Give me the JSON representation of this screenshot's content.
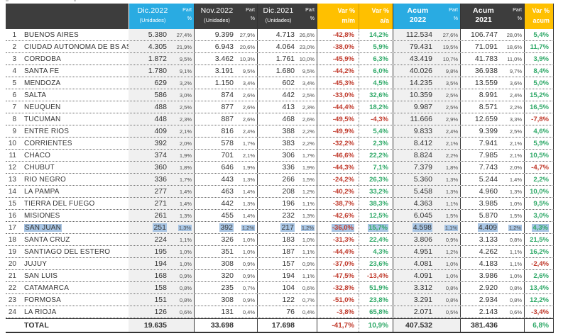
{
  "colors": {
    "header_dark": "#3D3D3D",
    "accent_cyan": "#29ABE2",
    "accent_yellow": "#FFC000",
    "positive_green": "#2FA968",
    "negative_red": "#C0392B",
    "highlight_blue": "#A8C5E4",
    "column_shade_gray": "#F0F0F0"
  },
  "header": {
    "part": {
      "line1": "Part",
      "line2": "%"
    },
    "dic2022": {
      "title": "Dic.2022",
      "sub": "(Unidades)"
    },
    "nov2022": {
      "title": "Nov.2022",
      "sub": "(Unidades)"
    },
    "dic2021": {
      "title": "Dic.2021",
      "sub": "(Unidades)"
    },
    "var_mm": {
      "line1": "Var %",
      "line2": "m/m"
    },
    "var_aa": {
      "line1": "Var %",
      "line2": "a/a"
    },
    "acum2022": {
      "line1": "Acum",
      "line2": "2022"
    },
    "acum2021": {
      "line1": "Acum",
      "line2": "2021"
    },
    "var_acum": {
      "line1": "Var %",
      "line2": "acum"
    }
  },
  "table": {
    "rows": [
      {
        "num": "1",
        "name": "BUENOS AIRES",
        "d22": "5.380",
        "d22p": "27,4%",
        "n22": "9.399",
        "n22p": "27,9%",
        "d21": "4.713",
        "d21p": "26,6%",
        "vmm": "-42,8%",
        "vaa": "14,2%",
        "a22": "112.534",
        "a22p": "27,6%",
        "a21": "106.747",
        "a21p": "28,0%",
        "vac": "5,4%"
      },
      {
        "num": "2",
        "name": "CIUDAD AUTONOMA DE BS AS",
        "d22": "4.305",
        "d22p": "21,9%",
        "n22": "6.943",
        "n22p": "20,6%",
        "d21": "4.064",
        "d21p": "23,0%",
        "vmm": "-38,0%",
        "vaa": "5,9%",
        "a22": "79.431",
        "a22p": "19,5%",
        "a21": "71.091",
        "a21p": "18,6%",
        "vac": "11,7%"
      },
      {
        "num": "3",
        "name": "CORDOBA",
        "d22": "1.872",
        "d22p": "9,5%",
        "n22": "3.462",
        "n22p": "10,3%",
        "d21": "1.761",
        "d21p": "10,0%",
        "vmm": "-45,9%",
        "vaa": "6,3%",
        "a22": "43.419",
        "a22p": "10,7%",
        "a21": "41.783",
        "a21p": "11,0%",
        "vac": "3,9%"
      },
      {
        "num": "4",
        "name": "SANTA FE",
        "d22": "1.780",
        "d22p": "9,1%",
        "n22": "3.191",
        "n22p": "9,5%",
        "d21": "1.680",
        "d21p": "9,5%",
        "vmm": "-44,2%",
        "vaa": "6,0%",
        "a22": "40.026",
        "a22p": "9,8%",
        "a21": "36.938",
        "a21p": "9,7%",
        "vac": "8,4%"
      },
      {
        "num": "5",
        "name": "MENDOZA",
        "d22": "629",
        "d22p": "3,2%",
        "n22": "1.150",
        "n22p": "3,4%",
        "d21": "602",
        "d21p": "3,4%",
        "vmm": "-45,3%",
        "vaa": "4,5%",
        "a22": "14.235",
        "a22p": "3,5%",
        "a21": "13.559",
        "a21p": "3,6%",
        "vac": "5,0%"
      },
      {
        "num": "6",
        "name": "SALTA",
        "d22": "586",
        "d22p": "3,0%",
        "n22": "874",
        "n22p": "2,6%",
        "d21": "442",
        "d21p": "2,5%",
        "vmm": "-33,0%",
        "vaa": "32,6%",
        "a22": "10.359",
        "a22p": "2,5%",
        "a21": "8.991",
        "a21p": "2,4%",
        "vac": "15,2%"
      },
      {
        "num": "7",
        "name": "NEUQUEN",
        "d22": "488",
        "d22p": "2,5%",
        "n22": "877",
        "n22p": "2,6%",
        "d21": "413",
        "d21p": "2,3%",
        "vmm": "-44,4%",
        "vaa": "18,2%",
        "a22": "9.987",
        "a22p": "2,5%",
        "a21": "8.571",
        "a21p": "2,2%",
        "vac": "16,5%"
      },
      {
        "num": "8",
        "name": "TUCUMAN",
        "d22": "448",
        "d22p": "2,3%",
        "n22": "887",
        "n22p": "2,6%",
        "d21": "468",
        "d21p": "2,6%",
        "vmm": "-49,5%",
        "vaa": "-4,3%",
        "a22": "11.666",
        "a22p": "2,9%",
        "a21": "12.659",
        "a21p": "3,3%",
        "vac": "-7,8%"
      },
      {
        "num": "9",
        "name": "ENTRE RIOS",
        "d22": "409",
        "d22p": "2,1%",
        "n22": "816",
        "n22p": "2,4%",
        "d21": "388",
        "d21p": "2,2%",
        "vmm": "-49,9%",
        "vaa": "5,4%",
        "a22": "9.833",
        "a22p": "2,4%",
        "a21": "9.399",
        "a21p": "2,5%",
        "vac": "4,6%"
      },
      {
        "num": "10",
        "name": "CORRIENTES",
        "d22": "392",
        "d22p": "2,0%",
        "n22": "578",
        "n22p": "1,7%",
        "d21": "383",
        "d21p": "2,2%",
        "vmm": "-32,2%",
        "vaa": "2,3%",
        "a22": "8.412",
        "a22p": "2,1%",
        "a21": "7.941",
        "a21p": "2,1%",
        "vac": "5,9%"
      },
      {
        "num": "11",
        "name": "CHACO",
        "d22": "374",
        "d22p": "1,9%",
        "n22": "701",
        "n22p": "2,1%",
        "d21": "306",
        "d21p": "1,7%",
        "vmm": "-46,6%",
        "vaa": "22,2%",
        "a22": "8.824",
        "a22p": "2,2%",
        "a21": "7.985",
        "a21p": "2,1%",
        "vac": "10,5%"
      },
      {
        "num": "12",
        "name": "CHUBUT",
        "d22": "360",
        "d22p": "1,8%",
        "n22": "646",
        "n22p": "1,9%",
        "d21": "336",
        "d21p": "1,9%",
        "vmm": "-44,3%",
        "vaa": "7,1%",
        "a22": "7.379",
        "a22p": "1,8%",
        "a21": "7.743",
        "a21p": "2,0%",
        "vac": "-4,7%"
      },
      {
        "num": "13",
        "name": "RIO NEGRO",
        "d22": "336",
        "d22p": "1,7%",
        "n22": "443",
        "n22p": "1,3%",
        "d21": "266",
        "d21p": "1,5%",
        "vmm": "-24,2%",
        "vaa": "26,3%",
        "a22": "5.360",
        "a22p": "1,3%",
        "a21": "5.244",
        "a21p": "1,4%",
        "vac": "2,2%"
      },
      {
        "num": "14",
        "name": "LA PAMPA",
        "d22": "277",
        "d22p": "1,4%",
        "n22": "463",
        "n22p": "1,4%",
        "d21": "208",
        "d21p": "1,2%",
        "vmm": "-40,2%",
        "vaa": "33,2%",
        "a22": "5.458",
        "a22p": "1,3%",
        "a21": "4.960",
        "a21p": "1,3%",
        "vac": "10,0%"
      },
      {
        "num": "15",
        "name": "TIERRA DEL FUEGO",
        "d22": "271",
        "d22p": "1,4%",
        "n22": "442",
        "n22p": "1,3%",
        "d21": "196",
        "d21p": "1,1%",
        "vmm": "-38,7%",
        "vaa": "38,3%",
        "a22": "4.363",
        "a22p": "1,1%",
        "a21": "3.985",
        "a21p": "1,0%",
        "vac": "9,5%"
      },
      {
        "num": "16",
        "name": "MISIONES",
        "d22": "261",
        "d22p": "1,3%",
        "n22": "455",
        "n22p": "1,4%",
        "d21": "232",
        "d21p": "1,3%",
        "vmm": "-42,6%",
        "vaa": "12,5%",
        "a22": "6.045",
        "a22p": "1,5%",
        "a21": "5.870",
        "a21p": "1,5%",
        "vac": "3,0%"
      },
      {
        "num": "17",
        "name": "SAN JUAN",
        "highlight": true,
        "d22": "251",
        "d22p": "1,3%",
        "n22": "392",
        "n22p": "1,2%",
        "d21": "217",
        "d21p": "1,2%",
        "vmm": "-36,0%",
        "vaa": "15,7%",
        "a22": "4.598",
        "a22p": "1,1%",
        "a21": "4.409",
        "a21p": "1,2%",
        "vac": "4,3%"
      },
      {
        "num": "18",
        "name": "SANTA CRUZ",
        "d22": "224",
        "d22p": "1,1%",
        "n22": "326",
        "n22p": "1,0%",
        "d21": "183",
        "d21p": "1,0%",
        "vmm": "-31,3%",
        "vaa": "22,4%",
        "a22": "3.806",
        "a22p": "0,9%",
        "a21": "3.133",
        "a21p": "0,8%",
        "vac": "21,5%"
      },
      {
        "num": "19",
        "name": "SANTIAGO DEL ESTERO",
        "d22": "195",
        "d22p": "1,0%",
        "n22": "351",
        "n22p": "1,0%",
        "d21": "187",
        "d21p": "1,1%",
        "vmm": "-44,4%",
        "vaa": "4,3%",
        "a22": "4.951",
        "a22p": "1,2%",
        "a21": "4.262",
        "a21p": "1,1%",
        "vac": "16,2%"
      },
      {
        "num": "20",
        "name": "JUJUY",
        "d22": "194",
        "d22p": "1,0%",
        "n22": "308",
        "n22p": "0,9%",
        "d21": "157",
        "d21p": "0,9%",
        "vmm": "-37,0%",
        "vaa": "23,6%",
        "a22": "4.081",
        "a22p": "1,0%",
        "a21": "4.183",
        "a21p": "1,1%",
        "vac": "-2,4%"
      },
      {
        "num": "21",
        "name": "SAN LUIS",
        "d22": "168",
        "d22p": "0,9%",
        "n22": "320",
        "n22p": "0,9%",
        "d21": "194",
        "d21p": "1,1%",
        "vmm": "-47,5%",
        "vaa": "-13,4%",
        "a22": "4.091",
        "a22p": "1,0%",
        "a21": "3.986",
        "a21p": "1,0%",
        "vac": "2,6%"
      },
      {
        "num": "22",
        "name": "CATAMARCA",
        "d22": "158",
        "d22p": "0,8%",
        "n22": "235",
        "n22p": "0,7%",
        "d21": "104",
        "d21p": "0,6%",
        "vmm": "-32,8%",
        "vaa": "51,9%",
        "a22": "3.312",
        "a22p": "0,8%",
        "a21": "2.920",
        "a21p": "0,8%",
        "vac": "13,4%"
      },
      {
        "num": "23",
        "name": "FORMOSA",
        "d22": "151",
        "d22p": "0,8%",
        "n22": "308",
        "n22p": "0,9%",
        "d21": "122",
        "d21p": "0,7%",
        "vmm": "-51,0%",
        "vaa": "23,8%",
        "a22": "3.291",
        "a22p": "0,8%",
        "a21": "2.934",
        "a21p": "0,8%",
        "vac": "12,2%"
      },
      {
        "num": "24",
        "name": "LA RIOJA",
        "d22": "126",
        "d22p": "0,6%",
        "n22": "131",
        "n22p": "0,4%",
        "d21": "76",
        "d21p": "0,4%",
        "vmm": "-3,8%",
        "vaa": "65,8%",
        "a22": "2.071",
        "a22p": "0,5%",
        "a21": "2.143",
        "a21p": "0,6%",
        "vac": "-3,4%"
      }
    ],
    "total": {
      "label": "TOTAL",
      "d22": "19.635",
      "n22": "33.698",
      "d21": "17.698",
      "vmm": "-41,7%",
      "vaa": "10,9%",
      "a22": "407.532",
      "a21": "381.436",
      "vac": "6,8%"
    }
  }
}
